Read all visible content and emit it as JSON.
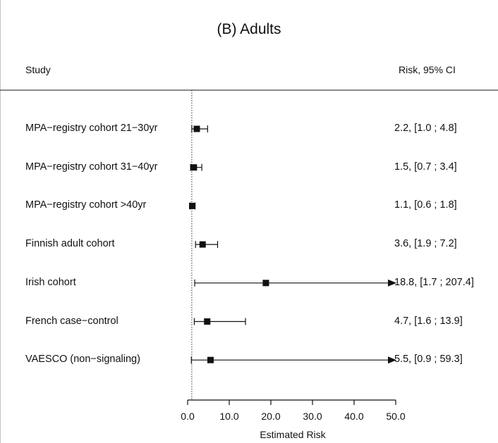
{
  "chart_data": {
    "type": "forest",
    "title": "(B) Adults",
    "header_left": "Study",
    "header_right": "Risk, 95% CI",
    "xlabel": "Estimated Risk",
    "xlim": [
      0,
      50
    ],
    "x_ticks": [
      "0.0",
      "10.0",
      "20.0",
      "30.0",
      "40.0",
      "50.0"
    ],
    "reference_line": 1,
    "rows": [
      {
        "study": "MPA−registry cohort 21−30yr",
        "estimate": 2.2,
        "lower": 1.0,
        "upper": 4.8,
        "ci_text": "2.2, [1.0 ; 4.8]",
        "truncated": false
      },
      {
        "study": "MPA−registry cohort 31−40yr",
        "estimate": 1.5,
        "lower": 0.7,
        "upper": 3.4,
        "ci_text": "1.5, [0.7 ; 3.4]",
        "truncated": false
      },
      {
        "study": "MPA−registry cohort >40yr",
        "estimate": 1.1,
        "lower": 0.6,
        "upper": 1.8,
        "ci_text": "1.1, [0.6 ; 1.8]",
        "truncated": false
      },
      {
        "study": "Finnish adult cohort",
        "estimate": 3.6,
        "lower": 1.9,
        "upper": 7.2,
        "ci_text": "3.6, [1.9 ; 7.2]",
        "truncated": false
      },
      {
        "study": "Irish cohort",
        "estimate": 18.8,
        "lower": 1.7,
        "upper": 207.4,
        "ci_text": "18.8, [1.7 ; 207.4]",
        "truncated": true
      },
      {
        "study": "French case−control",
        "estimate": 4.7,
        "lower": 1.6,
        "upper": 13.9,
        "ci_text": "4.7, [1.6 ; 13.9]",
        "truncated": false
      },
      {
        "study": "VAESCO (non−signaling)",
        "estimate": 5.5,
        "lower": 0.9,
        "upper": 59.3,
        "ci_text": "5.5, [0.9 ; 59.3]",
        "truncated": true
      }
    ]
  }
}
